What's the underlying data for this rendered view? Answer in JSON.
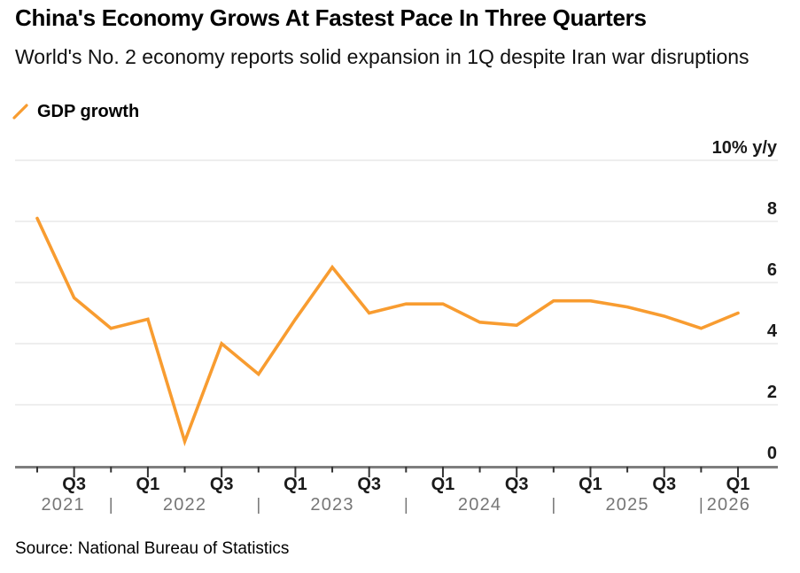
{
  "header": {
    "title": "China's Economy Grows At Fastest Pace In Three Quarters",
    "subtitle": "World's No. 2 economy reports solid expansion in 1Q despite Iran war disruptions"
  },
  "legend": {
    "label": "GDP growth"
  },
  "source": "Source: National Bureau of Statistics",
  "colors": {
    "line": "#F89C30",
    "grid": "#E4E4E4",
    "axis": "#7E7E7E",
    "tick": "#333333",
    "label": "#1a1a1a",
    "year_label": "#767676",
    "background": "#ffffff"
  },
  "chart_data": {
    "type": "line",
    "title": "China's Economy Grows At Fastest Pace In Three Quarters",
    "subtitle": "World's No. 2 economy reports solid expansion in 1Q despite Iran war disruptions",
    "x": [
      "2021 Q2",
      "2021 Q3",
      "2021 Q4",
      "2022 Q1",
      "2022 Q2",
      "2022 Q3",
      "2022 Q4",
      "2023 Q1",
      "2023 Q2",
      "2023 Q3",
      "2023 Q4",
      "2024 Q1",
      "2024 Q2",
      "2024 Q3",
      "2024 Q4",
      "2025 Q1",
      "2025 Q2",
      "2025 Q3",
      "2025 Q4",
      "2026 Q1"
    ],
    "series": [
      {
        "name": "GDP growth",
        "values": [
          8.1,
          5.5,
          4.5,
          4.8,
          0.8,
          4.0,
          3.0,
          4.8,
          6.5,
          5.0,
          5.3,
          5.3,
          4.7,
          4.6,
          5.4,
          5.4,
          5.2,
          4.9,
          4.5,
          5.0
        ]
      }
    ],
    "ylabel": "% y/y",
    "ylim": [
      0,
      10
    ],
    "yticks": [
      0,
      2,
      4,
      6,
      8
    ],
    "ytick_top_label": "10% y/y",
    "xtick_labels": [
      "Q3",
      "Q1",
      "Q3",
      "Q1",
      "Q3",
      "Q1",
      "Q3",
      "Q1",
      "Q3",
      "Q1"
    ],
    "year_labels": [
      "2021",
      "2022",
      "2023",
      "2024",
      "2025",
      "2026"
    ],
    "year_separator": "|",
    "grid": "horizontal",
    "legend_position": "top-left"
  }
}
